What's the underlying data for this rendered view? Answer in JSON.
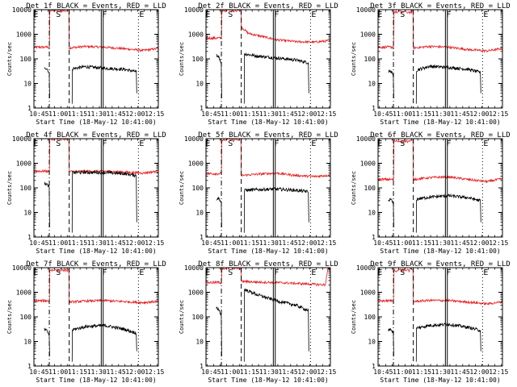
{
  "chart_data": {
    "type": "line",
    "shared": {
      "ylabel": "Counts/sec",
      "xlabel": "Start Time (18-May-12 10:41:00)",
      "x_ticks": [
        "10:45",
        "11:00",
        "11:15",
        "11:30",
        "11:45",
        "12:00",
        "12:15"
      ],
      "y_ticks": [
        "1",
        "10",
        "100",
        "1000",
        "10000"
      ],
      "y_scale": "log",
      "ylim": [
        1,
        10000
      ],
      "xlim_minutes_after_start": [
        0,
        97
      ],
      "marker_labels": [
        "E",
        "S",
        "F",
        "E"
      ],
      "marker_minutes_after_start": [
        -1,
        16.5,
        52.5,
        81.5
      ],
      "dash_dot_minute": 12,
      "dashed_minute": 27.5,
      "solid_minutes": [
        52.5,
        54
      ],
      "dotted_minute": 81.5,
      "series_names": [
        "BLACK = Events",
        "RED = LLD"
      ],
      "series_colors": [
        "#000000",
        "#e8191b"
      ]
    },
    "panels": [
      {
        "title": "Det 1f BLACK = Events, RED = LLD",
        "red": {
          "pre": 300,
          "spike_peak": 9000,
          "levels": [
            [
              27.5,
              280
            ],
            [
              40,
              320
            ],
            [
              55,
              300
            ],
            [
              70,
              260
            ],
            [
              85,
              220
            ],
            [
              96,
              260
            ]
          ]
        },
        "black": {
          "pre": [
            [
              8,
              40
            ],
            [
              10,
              42
            ],
            [
              12,
              25
            ]
          ],
          "levels": [
            [
              30,
              40
            ],
            [
              40,
              48
            ],
            [
              55,
              42
            ],
            [
              70,
              38
            ],
            [
              80,
              30
            ]
          ]
        }
      },
      {
        "title": "Det 2f BLACK = Events, RED = LLD",
        "red": {
          "pre": 700,
          "spike_peak": 9500,
          "levels": [
            [
              27.5,
              2000
            ],
            [
              33,
              1100
            ],
            [
              40,
              900
            ],
            [
              55,
              600
            ],
            [
              70,
              500
            ],
            [
              85,
              480
            ],
            [
              96,
              550
            ]
          ]
        },
        "black": {
          "pre": [
            [
              8,
              140
            ],
            [
              10,
              130
            ],
            [
              12,
              60
            ]
          ],
          "levels": [
            [
              30,
              160
            ],
            [
              40,
              130
            ],
            [
              55,
              110
            ],
            [
              70,
              90
            ],
            [
              80,
              70
            ]
          ]
        }
      },
      {
        "title": "Det 3f BLACK = Events, RED = LLD",
        "red": {
          "pre": 300,
          "spike_peak": 8000,
          "levels": [
            [
              27.5,
              280
            ],
            [
              40,
              320
            ],
            [
              55,
              300
            ],
            [
              70,
              240
            ],
            [
              85,
              210
            ],
            [
              96,
              260
            ]
          ]
        },
        "black": {
          "pre": [
            [
              8,
              30
            ],
            [
              10,
              32
            ],
            [
              12,
              20
            ]
          ],
          "levels": [
            [
              30,
              35
            ],
            [
              40,
              50
            ],
            [
              55,
              45
            ],
            [
              70,
              38
            ],
            [
              80,
              28
            ]
          ]
        }
      },
      {
        "title": "Det 4f BLACK = Events, RED = LLD",
        "red": {
          "pre": 480,
          "spike_peak": 10000,
          "levels": [
            [
              27.5,
              460
            ],
            [
              40,
              470
            ],
            [
              55,
              480
            ],
            [
              70,
              440
            ],
            [
              85,
              400
            ],
            [
              96,
              470
            ]
          ]
        },
        "black": {
          "pre": [
            [
              8,
              150
            ],
            [
              10,
              140
            ],
            [
              12,
              110
            ]
          ],
          "levels": [
            [
              30,
              420
            ],
            [
              40,
              430
            ],
            [
              55,
              420
            ],
            [
              70,
              380
            ],
            [
              80,
              320
            ]
          ]
        }
      },
      {
        "title": "Det 5f BLACK = Events, RED = LLD",
        "red": {
          "pre": 380,
          "spike_peak": 9000,
          "levels": [
            [
              27.5,
              320
            ],
            [
              40,
              360
            ],
            [
              55,
              400
            ],
            [
              70,
              320
            ],
            [
              85,
              290
            ],
            [
              96,
              330
            ]
          ]
        },
        "black": {
          "pre": [
            [
              8,
              35
            ],
            [
              10,
              38
            ],
            [
              12,
              25
            ]
          ],
          "levels": [
            [
              30,
              80
            ],
            [
              40,
              85
            ],
            [
              55,
              90
            ],
            [
              70,
              80
            ],
            [
              80,
              70
            ]
          ]
        }
      },
      {
        "title": "Det 6f BLACK = Events, RED = LLD",
        "red": {
          "pre": 220,
          "spike_peak": 8000,
          "levels": [
            [
              27.5,
              220
            ],
            [
              40,
              260
            ],
            [
              55,
              280
            ],
            [
              70,
              220
            ],
            [
              85,
              180
            ],
            [
              96,
              230
            ]
          ]
        },
        "black": {
          "pre": [
            [
              8,
              30
            ],
            [
              10,
              35
            ],
            [
              12,
              22
            ]
          ],
          "levels": [
            [
              30,
              35
            ],
            [
              40,
              42
            ],
            [
              55,
              48
            ],
            [
              70,
              40
            ],
            [
              80,
              30
            ]
          ]
        }
      },
      {
        "title": "Det 7f BLACK = Events, RED = LLD",
        "red": {
          "pre": 450,
          "spike_peak": 8000,
          "levels": [
            [
              27.5,
              400
            ],
            [
              40,
              440
            ],
            [
              55,
              460
            ],
            [
              70,
              420
            ],
            [
              85,
              380
            ],
            [
              96,
              430
            ]
          ]
        },
        "black": {
          "pre": [
            [
              8,
              30
            ],
            [
              10,
              28
            ],
            [
              12,
              18
            ]
          ],
          "levels": [
            [
              30,
              30
            ],
            [
              40,
              40
            ],
            [
              55,
              45
            ],
            [
              70,
              32
            ],
            [
              80,
              22
            ]
          ]
        }
      },
      {
        "title": "Det 8f BLACK = Events, RED = LLD",
        "red": {
          "pre": 2500,
          "spike_peak": 9500,
          "levels": [
            [
              27.5,
              2800
            ],
            [
              40,
              2600
            ],
            [
              55,
              2500
            ],
            [
              70,
              2300
            ],
            [
              85,
              2100
            ],
            [
              93,
              2000
            ],
            [
              95,
              9000
            ],
            [
              96,
              9500
            ]
          ]
        },
        "black": {
          "pre": [
            [
              8,
              230
            ],
            [
              10,
              200
            ],
            [
              12,
              110
            ]
          ],
          "levels": [
            [
              30,
              1300
            ],
            [
              40,
              800
            ],
            [
              55,
              450
            ],
            [
              70,
              300
            ],
            [
              80,
              180
            ]
          ]
        }
      },
      {
        "title": "Det 9f BLACK = Events, RED = LLD",
        "red": {
          "pre": 450,
          "spike_peak": 8000,
          "levels": [
            [
              27.5,
              420
            ],
            [
              40,
              470
            ],
            [
              55,
              460
            ],
            [
              70,
              400
            ],
            [
              85,
              340
            ],
            [
              96,
              400
            ]
          ]
        },
        "black": {
          "pre": [
            [
              8,
              30
            ],
            [
              10,
              32
            ],
            [
              12,
              20
            ]
          ],
          "levels": [
            [
              30,
              35
            ],
            [
              40,
              45
            ],
            [
              55,
              50
            ],
            [
              70,
              38
            ],
            [
              80,
              28
            ]
          ]
        }
      }
    ]
  }
}
